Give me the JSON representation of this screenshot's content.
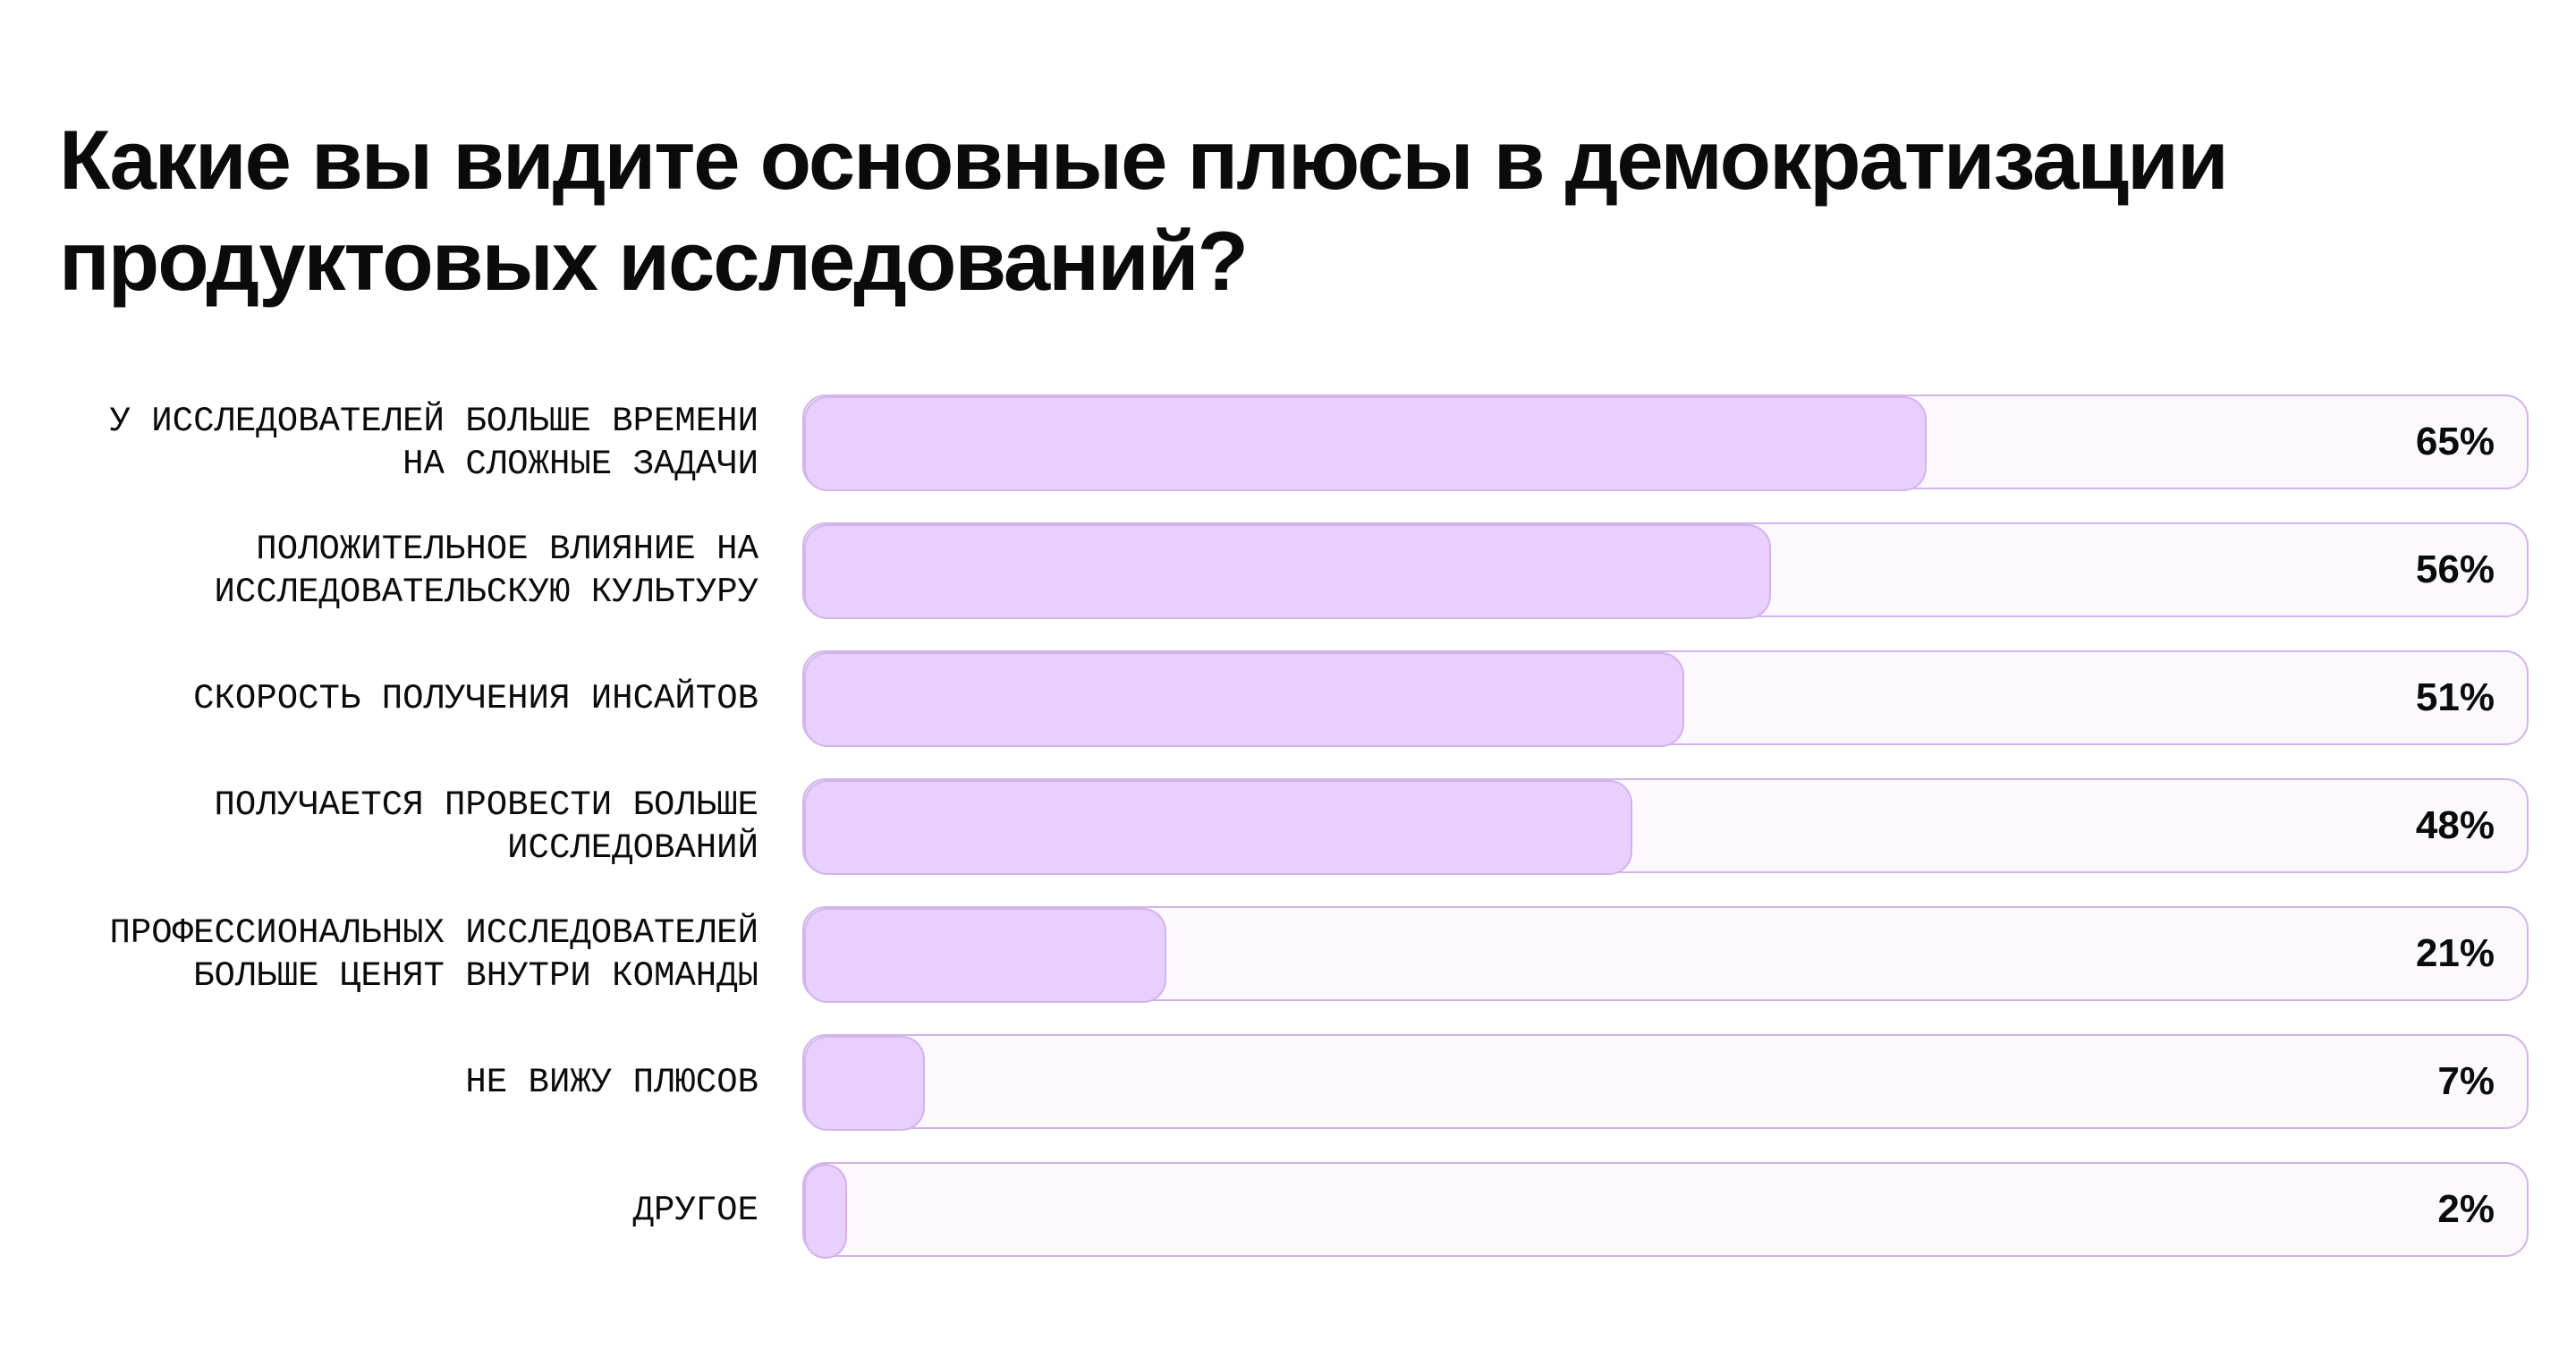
{
  "chart_data": {
    "type": "bar",
    "orientation": "horizontal",
    "title": "Какие вы видите основные плюсы в демократизации продуктовых исследований?",
    "categories": [
      "У ИССЛЕДОВАТЕЛЕЙ БОЛЬШЕ ВРЕМЕНИ\nНА СЛОЖНЫЕ ЗАДАЧИ",
      "ПОЛОЖИТЕЛЬНОЕ ВЛИЯНИЕ НА\nИССЛЕДОВАТЕЛЬСКУЮ КУЛЬТУРУ",
      "СКОРОСТЬ ПОЛУЧЕНИЯ ИНСАЙТОВ",
      "ПОЛУЧАЕТСЯ ПРОВЕСТИ БОЛЬШЕ\nИССЛЕДОВАНИЙ",
      "ПРОФЕССИОНАЛЬНЫХ ИССЛЕДОВАТЕЛЕЙ\nБОЛЬШЕ ЦЕНЯТ ВНУТРИ КОМАНДЫ",
      "НЕ ВИЖУ ПЛЮСОВ",
      "ДРУГОЕ"
    ],
    "values": [
      65,
      56,
      51,
      48,
      21,
      7,
      2
    ],
    "value_labels": [
      "65%",
      "56%",
      "51%",
      "48%",
      "21%",
      "7%",
      "2%"
    ],
    "xlim": [
      0,
      100
    ],
    "unit": "%",
    "grid": false,
    "colors": {
      "fill": "#e9cffd",
      "track": "#fbf8fe",
      "border": "#d3b3ec",
      "text": "#0b0b0b"
    }
  }
}
